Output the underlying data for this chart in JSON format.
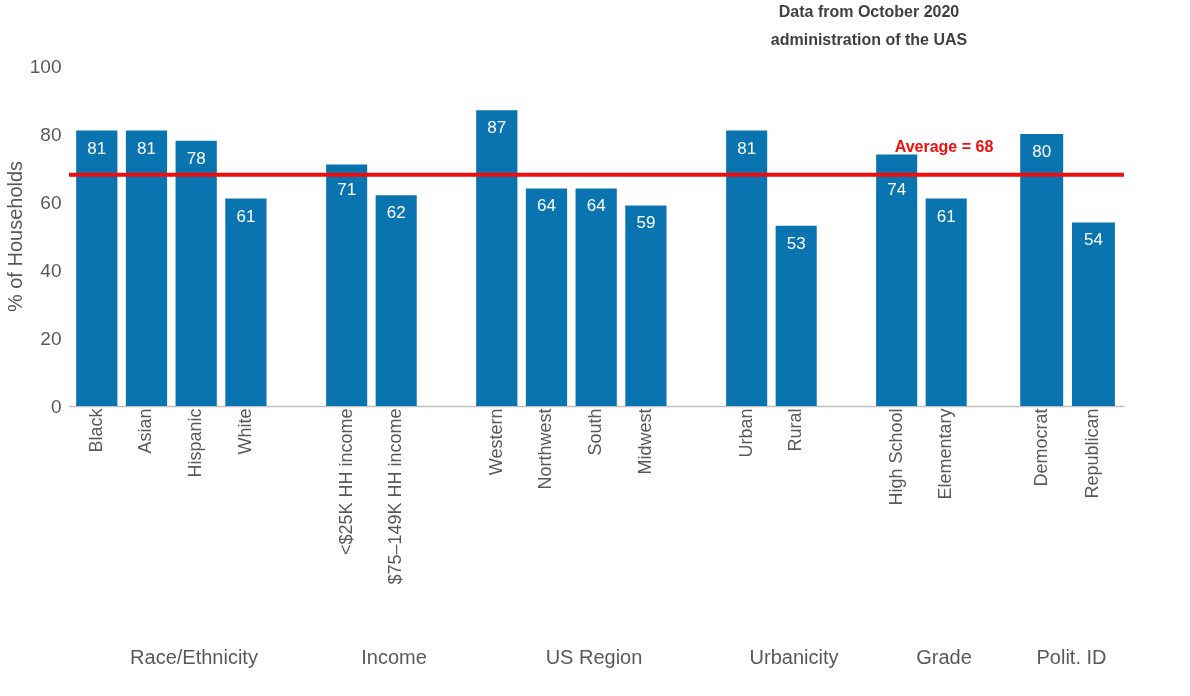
{
  "chart_data": [
    {
      "type": "bar",
      "xlabel": "Race/Ethnicity",
      "ylabel": "% of Households",
      "categories": [
        "Black",
        "Asian",
        "Hispanic",
        "White"
      ],
      "values": [
        81,
        81,
        78,
        61
      ],
      "color": "#0a74b1",
      "ylim": [
        0,
        100
      ],
      "yticks": [
        0,
        20,
        40,
        60,
        80,
        100
      ],
      "data_labels": true,
      "grid": false,
      "ref_lines": [
        {
          "axis": "y",
          "value": 68,
          "color": "#f20d0d"
        }
      ]
    },
    {
      "type": "bar",
      "xlabel": "Income",
      "categories": [
        "<$25K HH income",
        "$75–149K HH income"
      ],
      "values": [
        71,
        62
      ],
      "color": "#0a74b1",
      "ylim": [
        0,
        100
      ],
      "tick_labels": "x",
      "data_labels": true,
      "grid": false,
      "ref_lines": [
        {
          "axis": "y",
          "value": 68,
          "color": "#f20d0d"
        }
      ]
    },
    {
      "type": "bar",
      "xlabel": "US Region",
      "categories": [
        "Western",
        "Northwest",
        "South",
        "Midwest"
      ],
      "values": [
        87,
        64,
        64,
        59
      ],
      "color": "#0a74b1",
      "ylim": [
        0,
        100
      ],
      "tick_labels": "x",
      "data_labels": true,
      "grid": false,
      "ref_lines": [
        {
          "axis": "y",
          "value": 68,
          "color": "#f20d0d"
        }
      ]
    },
    {
      "type": "bar",
      "xlabel": "Urbanicity",
      "categories": [
        "Urban",
        "Rural"
      ],
      "values": [
        81,
        53
      ],
      "color": "#0a74b1",
      "ylim": [
        0,
        100
      ],
      "tick_labels": "x",
      "data_labels": true,
      "grid": false,
      "ref_lines": [
        {
          "axis": "y",
          "value": 68,
          "color": "#f20d0d"
        }
      ],
      "annotations": [
        "Data from October 2020\nadministration of the UAS"
      ]
    },
    {
      "type": "bar",
      "xlabel": "Grade",
      "categories": [
        "High School",
        "Elementary"
      ],
      "values": [
        74,
        61
      ],
      "color": "#0a74b1",
      "ylim": [
        0,
        100
      ],
      "tick_labels": "x",
      "data_labels": true,
      "grid": false,
      "ref_lines": [
        {
          "axis": "y",
          "value": 68,
          "color": "#f20d0d",
          "label": "Average = 68"
        }
      ]
    },
    {
      "type": "bar",
      "xlabel": "Polit. ID",
      "categories": [
        "Democrat",
        "Republican"
      ],
      "values": [
        80,
        54
      ],
      "color": "#0a74b1",
      "ylim": [
        0,
        100
      ],
      "tick_labels": "x",
      "data_labels": true,
      "grid": false,
      "ref_lines": [
        {
          "axis": "y",
          "value": 68,
          "color": "#f20d0d"
        }
      ]
    }
  ]
}
